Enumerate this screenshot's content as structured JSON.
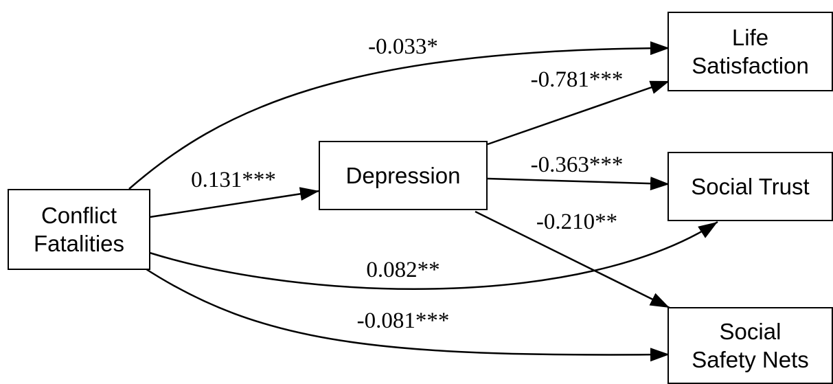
{
  "nodes": {
    "conflict": "Conflict\nFatalities",
    "depression": "Depression",
    "life": "Life\nSatisfaction",
    "trust": "Social Trust",
    "safety": "Social\nSafety Nets"
  },
  "edges": {
    "conflict_life": "-0.033*",
    "depression_life": "-0.781***",
    "conflict_depression": "0.131***",
    "depression_trust": "-0.363***",
    "depression_safety": "-0.210**",
    "conflict_trust": "0.082**",
    "conflict_safety": "-0.081***"
  },
  "colors": {
    "stroke": "#000000",
    "background": "#ffffff"
  }
}
